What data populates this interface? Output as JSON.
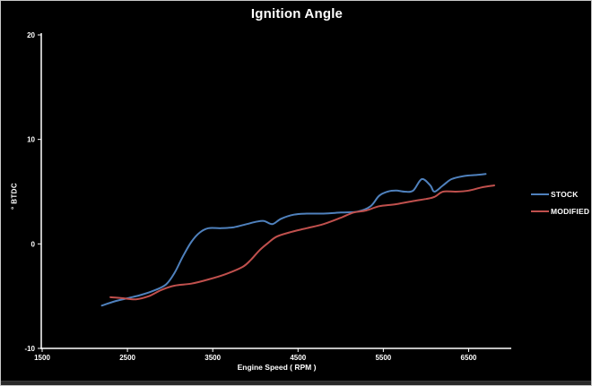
{
  "chart_data": {
    "type": "line",
    "title": "Ignition Angle",
    "xlabel": "Engine Speed ( RPM )",
    "ylabel": "° BTDC",
    "xlim": [
      1500,
      7000
    ],
    "ylim": [
      -10,
      20
    ],
    "x_ticks": [
      1500,
      2500,
      3500,
      4500,
      5500,
      6500
    ],
    "y_ticks": [
      20,
      10,
      0,
      -10
    ],
    "grid": false,
    "legend_position": "right",
    "background_color": "#000000",
    "axis_color": "#ffffff",
    "text_color": "#ffffff",
    "series": [
      {
        "name": "STOCK",
        "color": "#4F81BD",
        "points": [
          [
            2200,
            -5.9
          ],
          [
            2350,
            -5.5
          ],
          [
            2500,
            -5.2
          ],
          [
            2650,
            -4.9
          ],
          [
            2800,
            -4.5
          ],
          [
            2950,
            -3.9
          ],
          [
            3050,
            -2.8
          ],
          [
            3150,
            -1.2
          ],
          [
            3250,
            0.2
          ],
          [
            3350,
            1.1
          ],
          [
            3450,
            1.5
          ],
          [
            3600,
            1.5
          ],
          [
            3750,
            1.6
          ],
          [
            3900,
            1.9
          ],
          [
            4000,
            2.1
          ],
          [
            4100,
            2.2
          ],
          [
            4200,
            1.9
          ],
          [
            4300,
            2.4
          ],
          [
            4450,
            2.8
          ],
          [
            4600,
            2.9
          ],
          [
            4800,
            2.9
          ],
          [
            5000,
            3.0
          ],
          [
            5200,
            3.1
          ],
          [
            5350,
            3.6
          ],
          [
            5450,
            4.6
          ],
          [
            5550,
            5.0
          ],
          [
            5650,
            5.1
          ],
          [
            5750,
            5.0
          ],
          [
            5850,
            5.1
          ],
          [
            5950,
            6.2
          ],
          [
            6050,
            5.6
          ],
          [
            6100,
            5.0
          ],
          [
            6200,
            5.6
          ],
          [
            6300,
            6.2
          ],
          [
            6450,
            6.5
          ],
          [
            6600,
            6.6
          ],
          [
            6700,
            6.7
          ]
        ]
      },
      {
        "name": "MODIFIED",
        "color": "#C0504D",
        "points": [
          [
            2300,
            -5.1
          ],
          [
            2450,
            -5.2
          ],
          [
            2600,
            -5.3
          ],
          [
            2750,
            -5.0
          ],
          [
            2900,
            -4.4
          ],
          [
            3050,
            -4.0
          ],
          [
            3250,
            -3.8
          ],
          [
            3450,
            -3.4
          ],
          [
            3650,
            -2.9
          ],
          [
            3850,
            -2.2
          ],
          [
            3950,
            -1.5
          ],
          [
            4050,
            -0.6
          ],
          [
            4150,
            0.1
          ],
          [
            4250,
            0.7
          ],
          [
            4400,
            1.1
          ],
          [
            4600,
            1.5
          ],
          [
            4800,
            1.9
          ],
          [
            5000,
            2.5
          ],
          [
            5150,
            3.0
          ],
          [
            5300,
            3.2
          ],
          [
            5450,
            3.6
          ],
          [
            5650,
            3.8
          ],
          [
            5850,
            4.1
          ],
          [
            6000,
            4.3
          ],
          [
            6100,
            4.5
          ],
          [
            6200,
            5.0
          ],
          [
            6350,
            5.0
          ],
          [
            6500,
            5.1
          ],
          [
            6650,
            5.4
          ],
          [
            6800,
            5.6
          ]
        ]
      }
    ]
  }
}
